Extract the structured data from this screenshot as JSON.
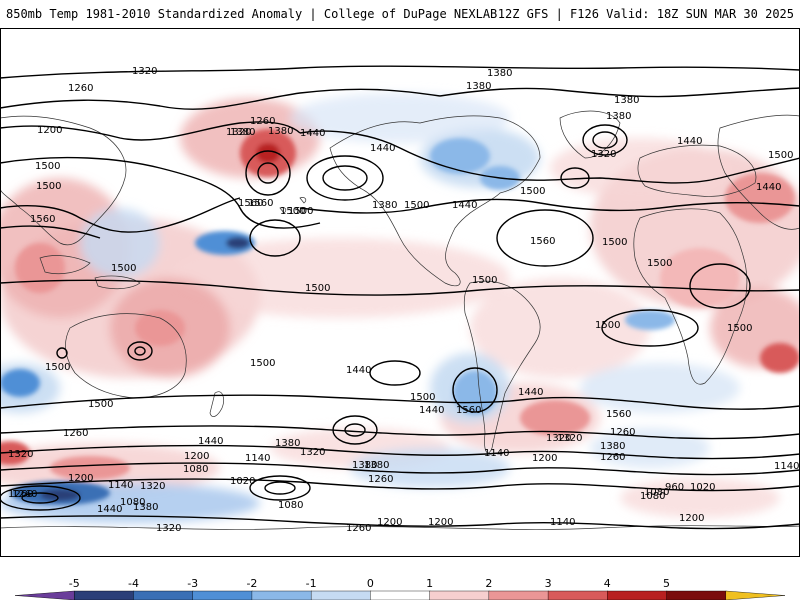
{
  "header": {
    "left_title": "850mb Temp 1981-2010 Standardized Anomaly | College of DuPage NEXLAB",
    "right_title": "12Z GFS | F126 Valid: 18Z SUN MAR 30 2025"
  },
  "contour_labels": [
    "1320",
    "1260",
    "1200",
    "1380",
    "1560",
    "1500",
    "1500",
    "1560",
    "1500",
    "1500",
    "1500",
    "1500",
    "1440",
    "1260",
    "1380",
    "1320",
    "1560",
    "1500",
    "1440",
    "1380",
    "1380",
    "1380",
    "1380",
    "1500",
    "1500",
    "1560",
    "1500",
    "1500",
    "1440",
    "1320",
    "1320",
    "1440",
    "1380",
    "1500",
    "1500",
    "1500",
    "1500",
    "1500",
    "1440",
    "1560",
    "1440",
    "1560",
    "1440",
    "1500",
    "1500",
    "1260",
    "1320",
    "1200",
    "1080",
    "1440",
    "1380",
    "1140",
    "1320",
    "1380",
    "1260",
    "1020",
    "1080",
    "1200",
    "1140",
    "1320",
    "1260",
    "1080",
    "1440",
    "1380",
    "1320",
    "1260",
    "1200",
    "1080",
    "1140",
    "1200",
    "1140",
    "1320",
    "1260",
    "1380",
    "1260",
    "1200",
    "1020",
    "960",
    "1080",
    "1140",
    "1200",
    "1380",
    "1440",
    "1260"
  ],
  "colorbar": {
    "ticks": [
      "-5",
      "-4",
      "-3",
      "-2",
      "-1",
      "0",
      "1",
      "2",
      "3",
      "4",
      "5"
    ],
    "colors": [
      "#6a3d9a",
      "#2b3f78",
      "#3a6fb5",
      "#4f8fd6",
      "#8bb8e8",
      "#c6dbf2",
      "#ffffff",
      "#f6cfcf",
      "#ea9696",
      "#d85a5a",
      "#b82020",
      "#7a0c0c",
      "#f0c020"
    ]
  }
}
